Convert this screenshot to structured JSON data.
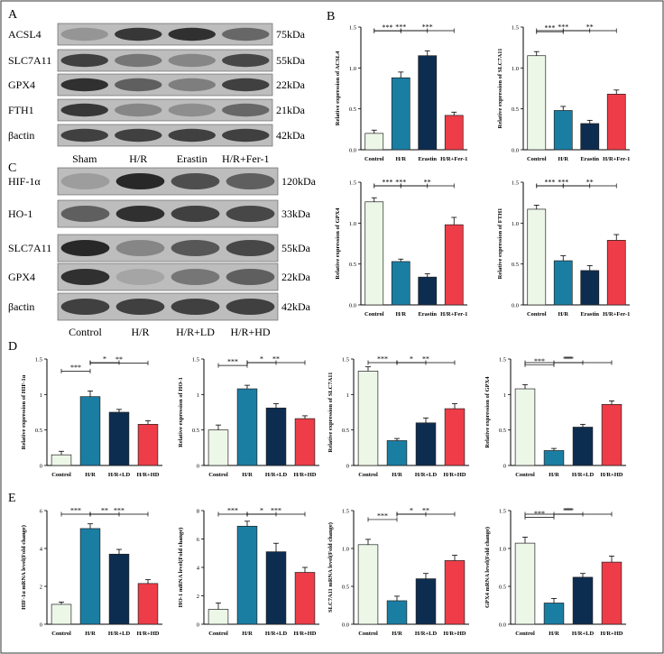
{
  "figure": {
    "panel_letters": [
      "A",
      "B",
      "C",
      "D",
      "E"
    ]
  },
  "colors": {
    "control": "#edf7e8",
    "hr": "#1a7ea3",
    "mid": "#0d2d50",
    "last": "#ee3d48",
    "blot_bg": "#bdbdbd",
    "band": "#202020"
  },
  "blot_a": {
    "rows": [
      {
        "label": "ACSL4",
        "kda": "75kDa",
        "intensity": [
          0.25,
          0.85,
          0.9,
          0.55
        ]
      },
      {
        "label": "SLC7A11",
        "kda": "55kDa",
        "intensity": [
          0.8,
          0.45,
          0.35,
          0.75
        ]
      },
      {
        "label": "GPX4",
        "kda": "22kDa",
        "intensity": [
          0.9,
          0.6,
          0.4,
          0.8
        ]
      },
      {
        "label": "FTH1",
        "kda": "21kDa",
        "intensity": [
          0.85,
          0.35,
          0.3,
          0.55
        ]
      },
      {
        "label": "βactin",
        "kda": "42kDa",
        "intensity": [
          0.8,
          0.8,
          0.8,
          0.8
        ]
      }
    ],
    "lanes": [
      "Sham",
      "H/R",
      "Erastin",
      "H/R+Fer-1"
    ]
  },
  "blot_c": {
    "rows": [
      {
        "label": "HIF-1α",
        "kda": "120kDa",
        "intensity": [
          0.2,
          0.95,
          0.7,
          0.6
        ]
      },
      {
        "label": "HO-1",
        "kda": "33kDa",
        "intensity": [
          0.6,
          0.9,
          0.8,
          0.75
        ]
      },
      {
        "label": "SLC7A11",
        "kda": "55kDa",
        "intensity": [
          0.95,
          0.35,
          0.65,
          0.75
        ]
      },
      {
        "label": "GPX4",
        "kda": "22kDa",
        "intensity": [
          0.9,
          0.15,
          0.45,
          0.6
        ]
      },
      {
        "label": "βactin",
        "kda": "42kDa",
        "intensity": [
          0.8,
          0.8,
          0.8,
          0.8
        ]
      }
    ],
    "lanes": [
      "Control",
      "H/R",
      "H/R+LD",
      "H/R+HD"
    ]
  },
  "chart_data": [
    {
      "id": "b1",
      "type": "bar",
      "categories": [
        "Control",
        "H/R",
        "Erastin",
        "H/R+Fer-1"
      ],
      "values": [
        0.2,
        0.88,
        1.15,
        0.42
      ],
      "errors": [
        0.04,
        0.07,
        0.06,
        0.04
      ],
      "ylabel": "Relative expression of ACSL4",
      "ylim": [
        0,
        1.5
      ],
      "yticks": [
        "0.0",
        "0.5",
        "1.0",
        "1.5"
      ],
      "sig": [
        {
          "a": 0,
          "b": 1,
          "label": "***"
        },
        {
          "a": 1,
          "b": 3,
          "label": "***"
        },
        {
          "a": 0,
          "b": 2,
          "label": "***"
        }
      ]
    },
    {
      "id": "b2",
      "type": "bar",
      "categories": [
        "Control",
        "H/R",
        "Erastin",
        "H/R+Fer-1"
      ],
      "values": [
        1.15,
        0.48,
        0.32,
        0.68
      ],
      "errors": [
        0.05,
        0.05,
        0.04,
        0.05
      ],
      "ylabel": "Relative expression of SLC7A11",
      "ylim": [
        0,
        1.5
      ],
      "yticks": [
        "0.0",
        "0.5",
        "1.0",
        "1.5"
      ],
      "sig": [
        {
          "a": 0,
          "b": 1,
          "label": "***"
        },
        {
          "a": 1,
          "b": 3,
          "label": "**"
        },
        {
          "a": 0,
          "b": 2,
          "label": "***"
        }
      ]
    },
    {
      "id": "b3",
      "type": "bar",
      "categories": [
        "Control",
        "H/R",
        "Erastin",
        "H/R+Fer-1"
      ],
      "values": [
        1.26,
        0.53,
        0.34,
        0.98
      ],
      "errors": [
        0.05,
        0.03,
        0.04,
        0.09
      ],
      "ylabel": "Relative expression of GPX4",
      "ylim": [
        0,
        1.5
      ],
      "yticks": [
        "0.0",
        "0.5",
        "1.0",
        "1.5"
      ],
      "sig": [
        {
          "a": 0,
          "b": 1,
          "label": "***"
        },
        {
          "a": 1,
          "b": 3,
          "label": "**"
        },
        {
          "a": 0,
          "b": 2,
          "label": "***"
        }
      ]
    },
    {
      "id": "b4",
      "type": "bar",
      "categories": [
        "Control",
        "H/R",
        "Erastin",
        "H/R+Fer-1"
      ],
      "values": [
        1.17,
        0.54,
        0.42,
        0.79
      ],
      "errors": [
        0.05,
        0.06,
        0.06,
        0.07
      ],
      "ylabel": "Relative expression of FTH1",
      "ylim": [
        0,
        1.5
      ],
      "yticks": [
        "0.0",
        "0.5",
        "1.0",
        "1.5"
      ],
      "sig": [
        {
          "a": 0,
          "b": 1,
          "label": "***"
        },
        {
          "a": 1,
          "b": 3,
          "label": "**"
        },
        {
          "a": 0,
          "b": 2,
          "label": "***"
        }
      ]
    },
    {
      "id": "d1",
      "type": "bar",
      "categories": [
        "Control",
        "H/R",
        "H/R+LD",
        "H/R+HD"
      ],
      "values": [
        0.15,
        0.97,
        0.75,
        0.58
      ],
      "errors": [
        0.05,
        0.08,
        0.04,
        0.05
      ],
      "ylabel": "Relative expression of HIF-1α",
      "ylim": [
        0,
        1.5
      ],
      "yticks": [
        "0",
        "0.5",
        "1",
        "1.5"
      ],
      "sig": [
        {
          "a": 0,
          "b": 1,
          "label": "***"
        },
        {
          "a": 1,
          "b": 3,
          "label": "**"
        },
        {
          "a": 1,
          "b": 2,
          "label": "*"
        }
      ]
    },
    {
      "id": "d2",
      "type": "bar",
      "categories": [
        "Control",
        "H/R",
        "H/R+LD",
        "H/R+HD"
      ],
      "values": [
        0.5,
        1.08,
        0.81,
        0.66
      ],
      "errors": [
        0.07,
        0.05,
        0.06,
        0.04
      ],
      "ylabel": "Relative expression of HO-1",
      "ylim": [
        0,
        1.5
      ],
      "yticks": [
        "0",
        "0.5",
        "1",
        "1.5"
      ],
      "sig": [
        {
          "a": 0,
          "b": 1,
          "label": "***"
        },
        {
          "a": 1,
          "b": 3,
          "label": "**"
        },
        {
          "a": 1,
          "b": 2,
          "label": "*"
        }
      ]
    },
    {
      "id": "d3",
      "type": "bar",
      "categories": [
        "Control",
        "H/R",
        "H/R+LD",
        "H/R+HD"
      ],
      "values": [
        1.33,
        0.35,
        0.6,
        0.8
      ],
      "errors": [
        0.06,
        0.03,
        0.07,
        0.07
      ],
      "ylabel": "Relative expression of SLC7A11",
      "ylim": [
        0,
        1.5
      ],
      "yticks": [
        "0",
        "0.5",
        "1",
        "1.5"
      ],
      "sig": [
        {
          "a": 0,
          "b": 1,
          "label": "***"
        },
        {
          "a": 1,
          "b": 3,
          "label": "**"
        },
        {
          "a": 1,
          "b": 2,
          "label": "*"
        }
      ]
    },
    {
      "id": "d4",
      "type": "bar",
      "categories": [
        "Control",
        "H/R",
        "H/R+LD",
        "H/R+HD"
      ],
      "values": [
        1.08,
        0.21,
        0.54,
        0.86
      ],
      "errors": [
        0.06,
        0.03,
        0.04,
        0.05
      ],
      "ylabel": "Relative expression of GPX4",
      "ylim": [
        0,
        1.5
      ],
      "yticks": [
        "0",
        "0.5",
        "1",
        "1.5"
      ],
      "sig": [
        {
          "a": 0,
          "b": 1,
          "label": "***"
        },
        {
          "a": 0,
          "b": 3,
          "label": "***"
        },
        {
          "a": 1,
          "b": 2,
          "label": "**"
        }
      ]
    },
    {
      "id": "e1",
      "type": "bar",
      "categories": [
        "Control",
        "H/R",
        "H/R+LD",
        "H/R+HD"
      ],
      "values": [
        1.05,
        5.05,
        3.7,
        2.15
      ],
      "errors": [
        0.12,
        0.25,
        0.25,
        0.2
      ],
      "ylabel": "HIF-1α mRNA level(Fold change)",
      "ylim": [
        0,
        6
      ],
      "yticks": [
        "0",
        "2",
        "4",
        "6"
      ],
      "sig": [
        {
          "a": 0,
          "b": 1,
          "label": "***"
        },
        {
          "a": 1,
          "b": 2,
          "label": "**"
        },
        {
          "a": 1,
          "b": 3,
          "label": "***"
        }
      ]
    },
    {
      "id": "e2",
      "type": "bar",
      "categories": [
        "Control",
        "H/R",
        "H/R+LD",
        "H/R+HD"
      ],
      "values": [
        1.05,
        6.9,
        5.1,
        3.65
      ],
      "errors": [
        0.45,
        0.35,
        0.6,
        0.35
      ],
      "ylabel": "HO-1 mRNA level(Fold change)",
      "ylim": [
        0,
        8
      ],
      "yticks": [
        "0",
        "2",
        "4",
        "6",
        "8"
      ],
      "sig": [
        {
          "a": 0,
          "b": 1,
          "label": "***"
        },
        {
          "a": 1,
          "b": 2,
          "label": "*"
        },
        {
          "a": 1,
          "b": 3,
          "label": "***"
        }
      ]
    },
    {
      "id": "e3",
      "type": "bar",
      "categories": [
        "Control",
        "H/R",
        "H/R+LD",
        "H/R+HD"
      ],
      "values": [
        1.05,
        0.31,
        0.6,
        0.84
      ],
      "errors": [
        0.07,
        0.06,
        0.07,
        0.07
      ],
      "ylabel": "SLC7A11 mRNA level(Fold change)",
      "ylim": [
        0,
        1.5
      ],
      "yticks": [
        "0.0",
        "0.5",
        "1.0",
        "1.5"
      ],
      "sig": [
        {
          "a": 0,
          "b": 1,
          "label": "***"
        },
        {
          "a": 1,
          "b": 3,
          "label": "**"
        },
        {
          "a": 1,
          "b": 2,
          "label": "*"
        }
      ]
    },
    {
      "id": "e4",
      "type": "bar",
      "categories": [
        "Control",
        "H/R",
        "H/R+LD",
        "H/R+HD"
      ],
      "values": [
        1.07,
        0.28,
        0.62,
        0.82
      ],
      "errors": [
        0.08,
        0.06,
        0.05,
        0.08
      ],
      "ylabel": "GPX4 mRNA level(Fold change)",
      "ylim": [
        0,
        1.5
      ],
      "yticks": [
        "0.0",
        "0.5",
        "1.0",
        "1.5"
      ],
      "sig": [
        {
          "a": 0,
          "b": 1,
          "label": "***"
        },
        {
          "a": 0,
          "b": 3,
          "label": "***"
        },
        {
          "a": 1,
          "b": 2,
          "label": "**"
        }
      ]
    }
  ]
}
